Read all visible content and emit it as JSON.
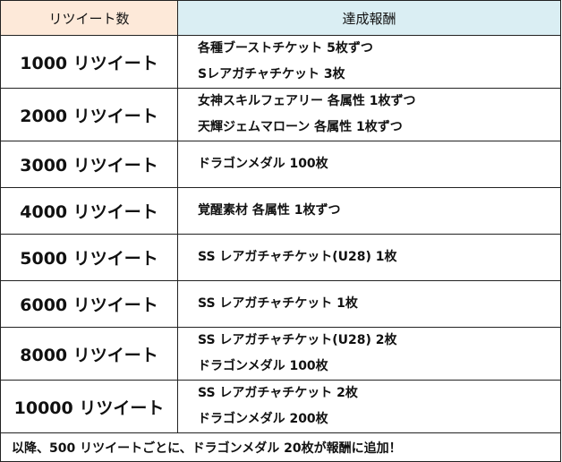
{
  "header": {
    "col1": "リツイート数",
    "col2": "達成報酬"
  },
  "colors": {
    "header_left_bg": "#fde9d9",
    "header_right_bg": "#daeef3"
  },
  "rows": [
    {
      "count": "1000 リツイート",
      "rewards": [
        "各種ブーストチケット 5枚ずつ",
        "Sレアガチャチケット 3枚"
      ]
    },
    {
      "count": "2000 リツイート",
      "rewards": [
        "女神スキルフェアリー 各属性 1枚ずつ",
        "天輝ジェムマローン 各属性 1枚ずつ"
      ]
    },
    {
      "count": "3000 リツイート",
      "rewards": [
        "ドラゴンメダル 100枚"
      ]
    },
    {
      "count": "4000 リツイート",
      "rewards": [
        "覚醒素材 各属性 1枚ずつ"
      ]
    },
    {
      "count": "5000 リツイート",
      "rewards": [
        "SS レアガチャチケット(U28) 1枚"
      ]
    },
    {
      "count": "6000 リツイート",
      "rewards": [
        "SS レアガチャチケット 1枚"
      ]
    },
    {
      "count": "8000 リツイート",
      "rewards": [
        "SS レアガチャチケット(U28) 2枚",
        "ドラゴンメダル 100枚"
      ]
    },
    {
      "count": "10000 リツイート",
      "rewards": [
        "SS レアガチャチケット 2枚",
        "ドラゴンメダル 200枚"
      ]
    }
  ],
  "footer": "以降、500 リツイートごとに、ドラゴンメダル 20枚が報酬に追加！"
}
